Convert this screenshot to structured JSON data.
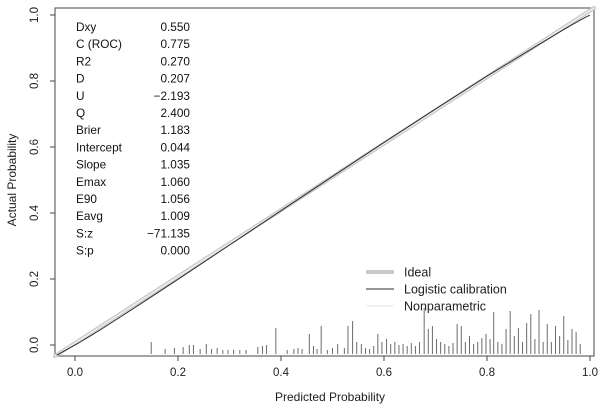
{
  "figure": {
    "background": "#ffffff"
  },
  "chart_data": {
    "type": "line",
    "title": "",
    "xlabel": "Predicted Probability",
    "ylabel": "Actual Probability",
    "xlim": [
      -0.04,
      1.01
    ],
    "ylim": [
      -0.03,
      1.02
    ],
    "grid": false,
    "x_ticks": {
      "values": [
        0.0,
        0.2,
        0.4,
        0.6,
        0.8,
        1.0
      ],
      "labels": [
        "0.0",
        "0.2",
        "0.4",
        "0.6",
        "0.8",
        "1.0"
      ]
    },
    "y_ticks": {
      "values": [
        0.0,
        0.2,
        0.4,
        0.6,
        0.8,
        1.0
      ],
      "labels": [
        "0.0",
        "0.2",
        "0.4",
        "0.6",
        "0.8",
        "1.0"
      ]
    },
    "series": [
      {
        "name": "Ideal",
        "color": "#c9c9c9",
        "line_width": 4,
        "spans_full_frame": true,
        "points": [
          [
            0,
            0
          ],
          [
            1,
            1
          ]
        ]
      },
      {
        "name": "Nonparametric",
        "color": "#ededed",
        "line_width": 1.5,
        "spans_full_frame": true,
        "points": [
          [
            0,
            0
          ],
          [
            1,
            1
          ]
        ]
      },
      {
        "name": "Logistic calibration",
        "color": "#2b2b2b",
        "line_width": 1,
        "spans_full_frame": false,
        "points": [
          [
            -0.035,
            -0.03
          ],
          [
            0.001,
            0.001
          ],
          [
            0.01,
            0.009
          ],
          [
            0.03,
            0.028
          ],
          [
            0.05,
            0.047
          ],
          [
            0.1,
            0.097
          ],
          [
            0.15,
            0.148
          ],
          [
            0.2,
            0.199
          ],
          [
            0.3,
            0.303
          ],
          [
            0.4,
            0.407
          ],
          [
            0.5,
            0.511
          ],
          [
            0.6,
            0.614
          ],
          [
            0.7,
            0.715
          ],
          [
            0.8,
            0.815
          ],
          [
            0.9,
            0.91
          ],
          [
            0.95,
            0.957
          ],
          [
            0.97,
            0.975
          ],
          [
            0.99,
            0.992
          ],
          [
            0.999,
            0.999
          ]
        ]
      }
    ],
    "legend": {
      "position": "bottom-right",
      "items": [
        {
          "label": "Ideal",
          "color": "#c9c9c9",
          "line_width": 4
        },
        {
          "label": "Logistic calibration",
          "color": "#2b2b2b",
          "line_width": 1
        },
        {
          "label": "Nonparametric",
          "color": "#ededed",
          "line_width": 1.5
        }
      ]
    },
    "rug": {
      "color": "#6b6b6b",
      "spike_heights_unit": "px",
      "spikes": [
        [
          0.148,
          12
        ],
        [
          0.175,
          5
        ],
        [
          0.193,
          6
        ],
        [
          0.21,
          7
        ],
        [
          0.222,
          9
        ],
        [
          0.23,
          9
        ],
        [
          0.243,
          5
        ],
        [
          0.255,
          10
        ],
        [
          0.265,
          5
        ],
        [
          0.276,
          6
        ],
        [
          0.287,
          4
        ],
        [
          0.297,
          4
        ],
        [
          0.308,
          4
        ],
        [
          0.32,
          4
        ],
        [
          0.332,
          4
        ],
        [
          0.355,
          7
        ],
        [
          0.364,
          8
        ],
        [
          0.372,
          9
        ],
        [
          0.39,
          26
        ],
        [
          0.412,
          4
        ],
        [
          0.425,
          5
        ],
        [
          0.433,
          6
        ],
        [
          0.441,
          5
        ],
        [
          0.455,
          20
        ],
        [
          0.463,
          8
        ],
        [
          0.47,
          5
        ],
        [
          0.478,
          28
        ],
        [
          0.49,
          4
        ],
        [
          0.5,
          6
        ],
        [
          0.51,
          10
        ],
        [
          0.523,
          6
        ],
        [
          0.53,
          28
        ],
        [
          0.539,
          33
        ],
        [
          0.547,
          12
        ],
        [
          0.556,
          10
        ],
        [
          0.564,
          6
        ],
        [
          0.572,
          5
        ],
        [
          0.58,
          8
        ],
        [
          0.588,
          20
        ],
        [
          0.596,
          12
        ],
        [
          0.605,
          15
        ],
        [
          0.613,
          10
        ],
        [
          0.621,
          12
        ],
        [
          0.629,
          9
        ],
        [
          0.637,
          10
        ],
        [
          0.645,
          8
        ],
        [
          0.653,
          11
        ],
        [
          0.661,
          8
        ],
        [
          0.669,
          12
        ],
        [
          0.678,
          46
        ],
        [
          0.686,
          25
        ],
        [
          0.694,
          28
        ],
        [
          0.702,
          15
        ],
        [
          0.71,
          12
        ],
        [
          0.718,
          10
        ],
        [
          0.726,
          8
        ],
        [
          0.734,
          11
        ],
        [
          0.742,
          30
        ],
        [
          0.75,
          28
        ],
        [
          0.758,
          12
        ],
        [
          0.766,
          18
        ],
        [
          0.774,
          10
        ],
        [
          0.782,
          12
        ],
        [
          0.79,
          16
        ],
        [
          0.798,
          20
        ],
        [
          0.806,
          15
        ],
        [
          0.813,
          42
        ],
        [
          0.821,
          12
        ],
        [
          0.829,
          10
        ],
        [
          0.837,
          25
        ],
        [
          0.845,
          43
        ],
        [
          0.853,
          18
        ],
        [
          0.861,
          26
        ],
        [
          0.869,
          12
        ],
        [
          0.877,
          31
        ],
        [
          0.885,
          40
        ],
        [
          0.893,
          15
        ],
        [
          0.901,
          44
        ],
        [
          0.909,
          12
        ],
        [
          0.917,
          30
        ],
        [
          0.925,
          12
        ],
        [
          0.933,
          28
        ],
        [
          0.941,
          18
        ],
        [
          0.949,
          38
        ],
        [
          0.957,
          14
        ],
        [
          0.965,
          25
        ],
        [
          0.973,
          22
        ],
        [
          0.981,
          10
        ]
      ]
    }
  },
  "stats_panel": {
    "rows": [
      {
        "label": "Dxy",
        "value": "0.550"
      },
      {
        "label": "C (ROC)",
        "value": "0.775"
      },
      {
        "label": "R2",
        "value": "0.270"
      },
      {
        "label": "D",
        "value": "0.207"
      },
      {
        "label": "U",
        "value": "−2.193"
      },
      {
        "label": "Q",
        "value": "2.400"
      },
      {
        "label": "Brier",
        "value": "1.183"
      },
      {
        "label": "Intercept",
        "value": "0.044"
      },
      {
        "label": "Slope",
        "value": "1.035"
      },
      {
        "label": "Emax",
        "value": "1.060"
      },
      {
        "label": "E90",
        "value": "1.056"
      },
      {
        "label": "Eavg",
        "value": "1.009"
      },
      {
        "label": "S:z",
        "value": "−71.135"
      },
      {
        "label": "S:p",
        "value": "0.000"
      }
    ]
  }
}
